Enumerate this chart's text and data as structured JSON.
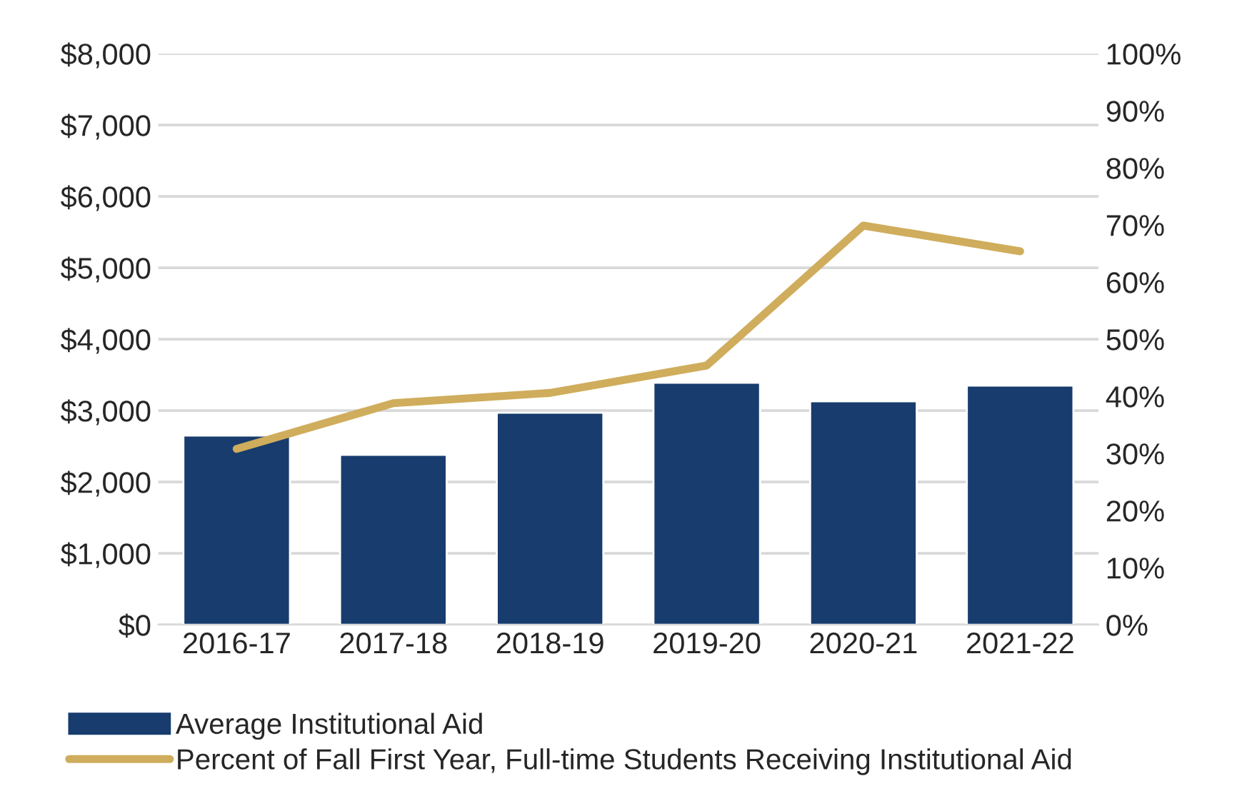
{
  "chart_data": {
    "type": "bar",
    "categories": [
      "2016-17",
      "2017-18",
      "2018-19",
      "2019-20",
      "2020-21",
      "2021-22"
    ],
    "series": [
      {
        "name": "Average Institutional Aid",
        "color": "#173c6d",
        "values": [
          2650,
          2380,
          2970,
          3390,
          3130,
          3350
        ]
      },
      {
        "name": "Percent of Fall First Year, Full-time Students Receiving Institutional Aid",
        "type": "line",
        "axis": "y2",
        "color": "#cfad5c",
        "values": [
          30.8,
          38.8,
          40.6,
          45.4,
          69.9,
          65.4
        ]
      }
    ],
    "ylim": [
      0,
      8000
    ],
    "yticks": [
      {
        "value": 0,
        "label": "$0"
      },
      {
        "value": 1000,
        "label": "$1,000"
      },
      {
        "value": 2000,
        "label": "$2,000"
      },
      {
        "value": 3000,
        "label": "$3,000"
      },
      {
        "value": 4000,
        "label": "$4,000"
      },
      {
        "value": 5000,
        "label": "$5,000"
      },
      {
        "value": 6000,
        "label": "$6,000"
      },
      {
        "value": 7000,
        "label": "$7,000"
      },
      {
        "value": 8000,
        "label": "$8,000"
      }
    ],
    "y2lim": [
      0,
      100
    ],
    "y2ticks": [
      {
        "value": 0,
        "label": "0%"
      },
      {
        "value": 10,
        "label": "10%"
      },
      {
        "value": 20,
        "label": "20%"
      },
      {
        "value": 30,
        "label": "30%"
      },
      {
        "value": 40,
        "label": "40%"
      },
      {
        "value": 50,
        "label": "50%"
      },
      {
        "value": 60,
        "label": "60%"
      },
      {
        "value": 70,
        "label": "70%"
      },
      {
        "value": 80,
        "label": "80%"
      },
      {
        "value": 90,
        "label": "90%"
      },
      {
        "value": 100,
        "label": "100%"
      }
    ],
    "grid": "y",
    "legend": "bottom",
    "marker": "none",
    "line_style": "solid"
  }
}
